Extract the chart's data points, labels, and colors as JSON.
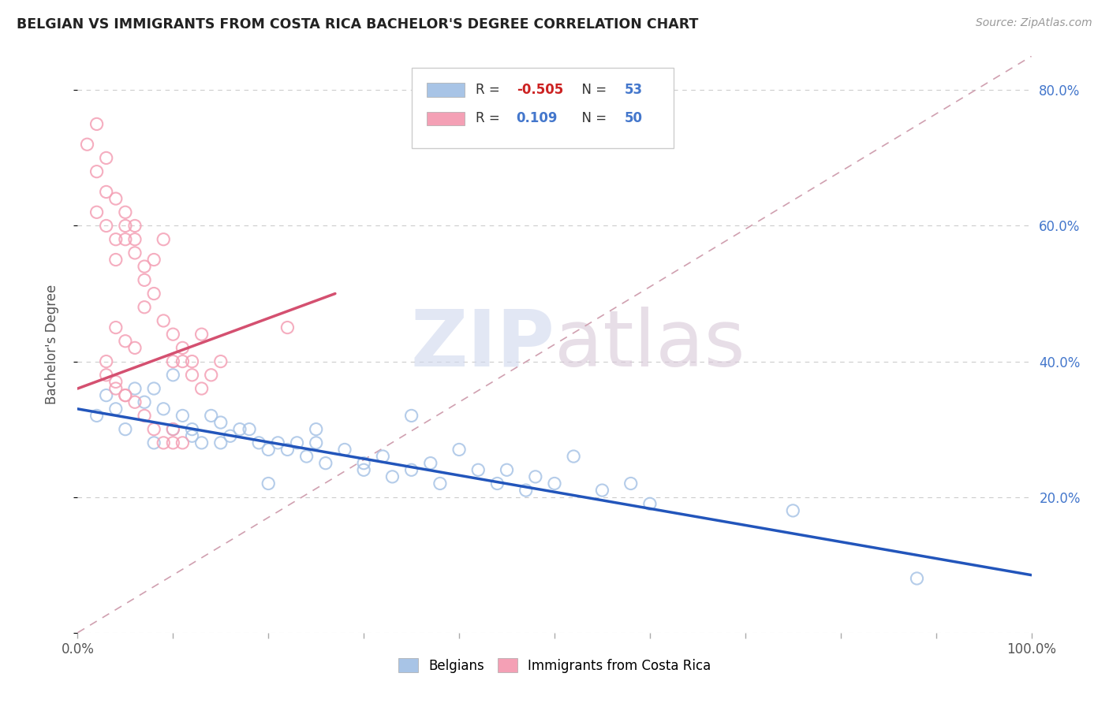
{
  "title": "BELGIAN VS IMMIGRANTS FROM COSTA RICA BACHELOR'S DEGREE CORRELATION CHART",
  "source": "Source: ZipAtlas.com",
  "ylabel": "Bachelor's Degree",
  "xlim": [
    0.0,
    1.0
  ],
  "ylim": [
    0.0,
    0.85
  ],
  "x_ticks": [
    0.0,
    0.1,
    0.2,
    0.3,
    0.4,
    0.5,
    0.6,
    0.7,
    0.8,
    0.9,
    1.0
  ],
  "x_tick_labels": [
    "0.0%",
    "",
    "",
    "",
    "",
    "",
    "",
    "",
    "",
    "",
    "100.0%"
  ],
  "y_ticks": [
    0.0,
    0.2,
    0.4,
    0.6,
    0.8
  ],
  "y_tick_labels_right": [
    "",
    "20.0%",
    "40.0%",
    "60.0%",
    "80.0%"
  ],
  "belgian_R": -0.505,
  "belgian_N": 53,
  "costarica_R": 0.109,
  "costarica_N": 50,
  "belgian_color": "#a8c4e6",
  "costarica_color": "#f4a0b5",
  "belgian_line_color": "#2255bb",
  "costarica_line_color": "#d45070",
  "diag_line_color": "#d0a0b0",
  "background_color": "#ffffff",
  "watermark_zip": "ZIP",
  "watermark_atlas": "atlas",
  "belgian_x": [
    0.02,
    0.03,
    0.04,
    0.05,
    0.06,
    0.07,
    0.08,
    0.09,
    0.1,
    0.11,
    0.12,
    0.13,
    0.14,
    0.15,
    0.16,
    0.17,
    0.18,
    0.19,
    0.2,
    0.21,
    0.22,
    0.23,
    0.24,
    0.25,
    0.26,
    0.28,
    0.3,
    0.32,
    0.33,
    0.35,
    0.37,
    0.38,
    0.4,
    0.42,
    0.44,
    0.45,
    0.47,
    0.48,
    0.5,
    0.52,
    0.55,
    0.58,
    0.6,
    0.35,
    0.1,
    0.15,
    0.2,
    0.25,
    0.3,
    0.08,
    0.12,
    0.75,
    0.88
  ],
  "belgian_y": [
    0.32,
    0.35,
    0.33,
    0.3,
    0.36,
    0.34,
    0.28,
    0.33,
    0.3,
    0.32,
    0.3,
    0.28,
    0.32,
    0.31,
    0.29,
    0.3,
    0.3,
    0.28,
    0.27,
    0.28,
    0.27,
    0.28,
    0.26,
    0.28,
    0.25,
    0.27,
    0.25,
    0.26,
    0.23,
    0.24,
    0.25,
    0.22,
    0.27,
    0.24,
    0.22,
    0.24,
    0.21,
    0.23,
    0.22,
    0.26,
    0.21,
    0.22,
    0.19,
    0.32,
    0.38,
    0.28,
    0.22,
    0.3,
    0.24,
    0.36,
    0.29,
    0.18,
    0.08
  ],
  "costarica_x": [
    0.01,
    0.02,
    0.02,
    0.03,
    0.03,
    0.04,
    0.04,
    0.05,
    0.05,
    0.06,
    0.06,
    0.07,
    0.07,
    0.08,
    0.09,
    0.1,
    0.11,
    0.12,
    0.13,
    0.14,
    0.15,
    0.02,
    0.03,
    0.04,
    0.05,
    0.06,
    0.07,
    0.08,
    0.09,
    0.1,
    0.11,
    0.12,
    0.13,
    0.04,
    0.05,
    0.06,
    0.03,
    0.04,
    0.05,
    0.06,
    0.07,
    0.08,
    0.09,
    0.1,
    0.11,
    0.03,
    0.04,
    0.05,
    0.22,
    0.1
  ],
  "costarica_y": [
    0.72,
    0.68,
    0.62,
    0.65,
    0.6,
    0.58,
    0.55,
    0.62,
    0.58,
    0.6,
    0.56,
    0.52,
    0.48,
    0.55,
    0.58,
    0.4,
    0.42,
    0.4,
    0.44,
    0.38,
    0.4,
    0.75,
    0.7,
    0.64,
    0.6,
    0.58,
    0.54,
    0.5,
    0.46,
    0.44,
    0.4,
    0.38,
    0.36,
    0.45,
    0.43,
    0.42,
    0.38,
    0.36,
    0.35,
    0.34,
    0.32,
    0.3,
    0.28,
    0.3,
    0.28,
    0.4,
    0.37,
    0.35,
    0.45,
    0.28
  ],
  "belgian_trend": [
    0.0,
    1.0,
    0.33,
    0.085
  ],
  "costarica_trend": [
    0.0,
    0.27,
    0.36,
    0.5
  ]
}
